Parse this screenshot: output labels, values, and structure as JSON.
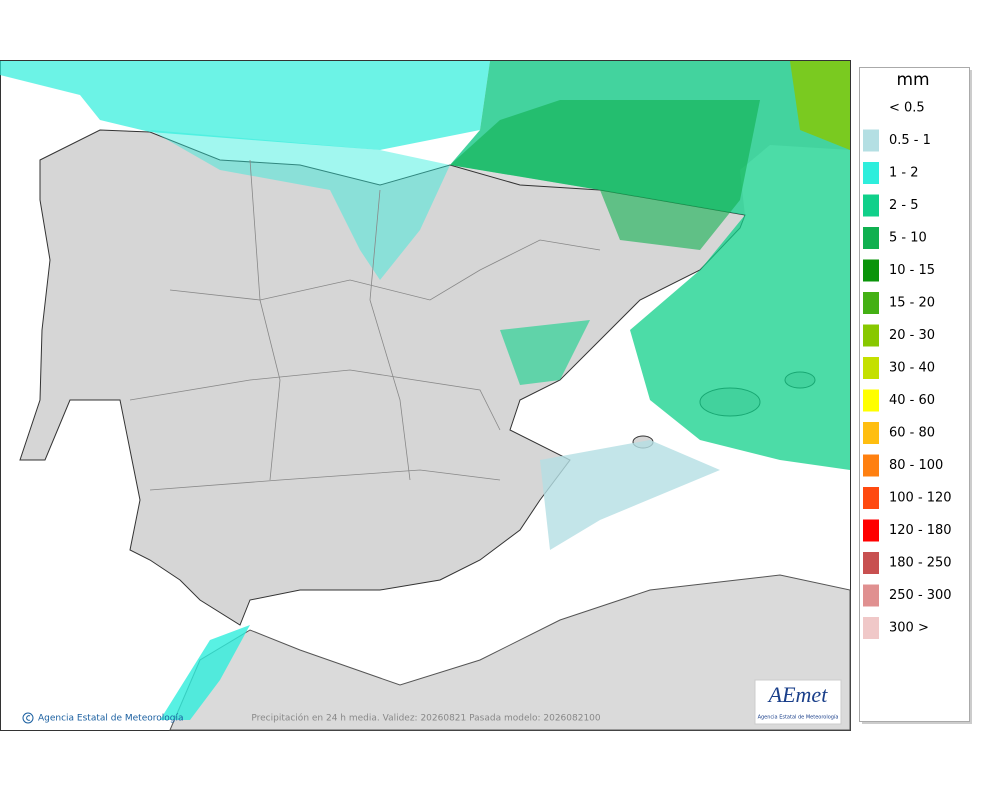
{
  "legend": {
    "title": "mm",
    "items": [
      {
        "label": "< 0.5",
        "color": "#ffffff"
      },
      {
        "label": "0.5 - 1",
        "color": "#b4dfe3"
      },
      {
        "label": "1 - 2",
        "color": "#2eeedc"
      },
      {
        "label": "2 - 5",
        "color": "#10d08a"
      },
      {
        "label": "5 - 10",
        "color": "#10b050"
      },
      {
        "label": "10 - 15",
        "color": "#0a940a"
      },
      {
        "label": "15 - 20",
        "color": "#44b014"
      },
      {
        "label": "20 - 30",
        "color": "#88c800"
      },
      {
        "label": "30 - 40",
        "color": "#c4e000"
      },
      {
        "label": "40 - 60",
        "color": "#ffff00"
      },
      {
        "label": "60 - 80",
        "color": "#ffbe10"
      },
      {
        "label": "80 - 100",
        "color": "#ff8010"
      },
      {
        "label": "100 - 120",
        "color": "#ff4a10"
      },
      {
        "label": "120 - 180",
        "color": "#ff0000"
      },
      {
        "label": "180 - 250",
        "color": "#c85050"
      },
      {
        "label": "250 - 300",
        "color": "#e09090"
      },
      {
        "label": "300 >",
        "color": "#f0c8c8"
      }
    ]
  },
  "credit": "Agencia Estatal de Meteorología",
  "caption": "Precipitación en 24 h media. Validez: 20260821 Pasada modelo: 2026082100",
  "logo": {
    "name": "AEmet",
    "subtitle": "Agencia Estatal de Meteorología"
  }
}
